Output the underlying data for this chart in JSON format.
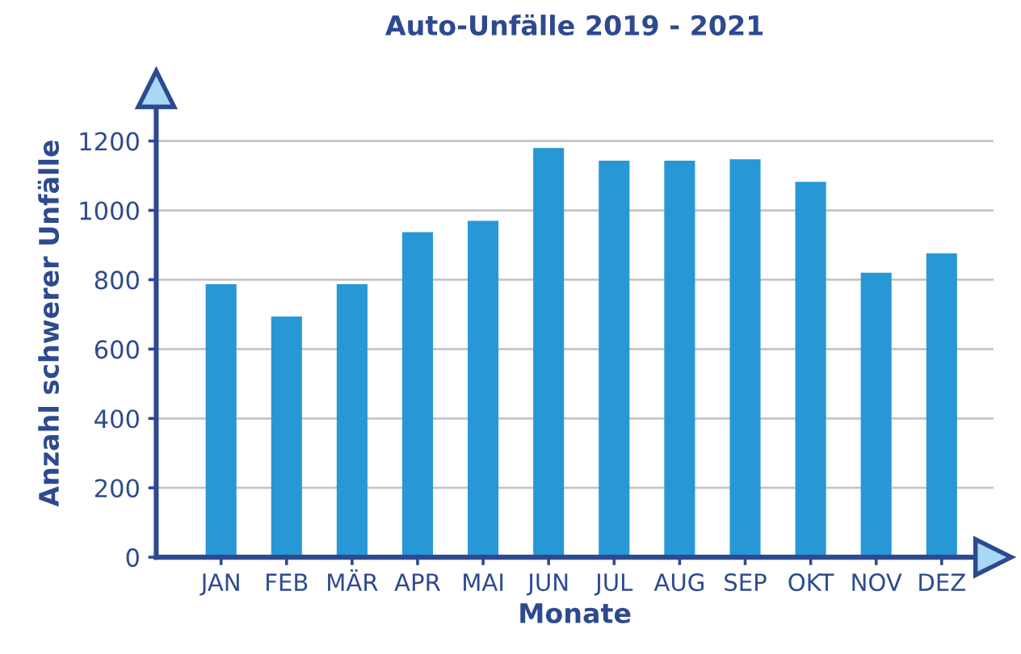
{
  "chart_data": {
    "type": "bar",
    "title": "Auto-Unfälle 2019 - 2021",
    "xlabel": "Monate",
    "ylabel": "Anzahl schwerer Unfälle",
    "categories": [
      "JAN",
      "FEB",
      "MÄR",
      "APR",
      "MAI",
      "JUN",
      "JUL",
      "AUG",
      "SEP",
      "OKT",
      "NOV",
      "DEZ"
    ],
    "values": [
      787,
      694,
      787,
      937,
      970,
      1180,
      1143,
      1143,
      1147,
      1082,
      820,
      876
    ],
    "color": "#2798d5",
    "ylim": [
      0,
      1350
    ],
    "yticks": [
      0,
      200,
      400,
      600,
      800,
      1000,
      1200
    ],
    "grid": "y",
    "legend": false
  }
}
